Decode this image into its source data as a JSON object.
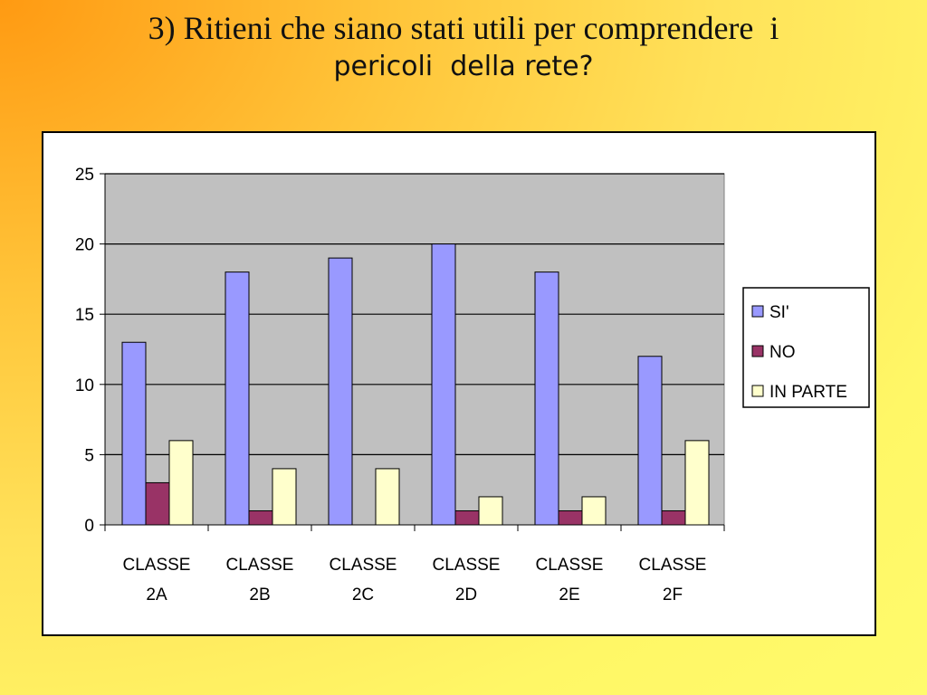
{
  "title": {
    "line1": "3) Ritieni che siano stati utili per comprendere  i",
    "line2": "pericoli  della rete?"
  },
  "chart_data": {
    "type": "bar",
    "categories": [
      [
        "CLASSE",
        "2A"
      ],
      [
        "CLASSE",
        "2B"
      ],
      [
        "CLASSE",
        "2C"
      ],
      [
        "CLASSE",
        "2D"
      ],
      [
        "CLASSE",
        "2E"
      ],
      [
        "CLASSE",
        "2F"
      ]
    ],
    "series": [
      {
        "name": "SI'",
        "color": "#9999ff",
        "values": [
          13,
          18,
          19,
          20,
          18,
          12
        ]
      },
      {
        "name": "NO",
        "color": "#993366",
        "values": [
          3,
          1,
          0,
          1,
          1,
          1
        ]
      },
      {
        "name": "IN PARTE",
        "color": "#ffffcc",
        "values": [
          6,
          4,
          4,
          2,
          2,
          6
        ]
      }
    ],
    "yticks": [
      "0",
      "5",
      "10",
      "15",
      "20",
      "25"
    ],
    "ylim": [
      0,
      25
    ],
    "grid": true,
    "plot_background": "#c0c0c0",
    "legend_position": "right"
  }
}
